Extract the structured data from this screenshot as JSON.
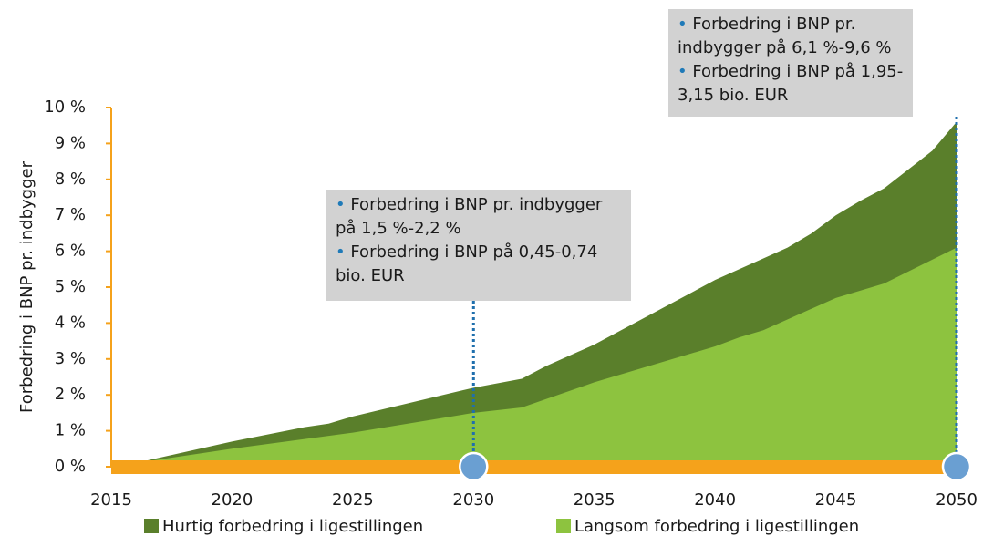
{
  "chart_data": {
    "type": "area",
    "y_label": "Forbedring i BNP pr. indbygger",
    "xlim": [
      2015,
      2050
    ],
    "xticks": [
      2015,
      2020,
      2025,
      2030,
      2035,
      2040,
      2045,
      2050
    ],
    "ylim": [
      0,
      10
    ],
    "yticks": [
      {
        "value": 0,
        "label": "0 %"
      },
      {
        "value": 1,
        "label": "1 %"
      },
      {
        "value": 2,
        "label": "2 %"
      },
      {
        "value": 3,
        "label": "3 %"
      },
      {
        "value": 4,
        "label": "4 %"
      },
      {
        "value": 5,
        "label": "5 %"
      },
      {
        "value": 6,
        "label": "6 %"
      },
      {
        "value": 7,
        "label": "7 %"
      },
      {
        "value": 8,
        "label": "8 %"
      },
      {
        "value": 9,
        "label": "9 %"
      },
      {
        "value": 10,
        "label": "10 %"
      }
    ],
    "series": [
      {
        "name": "Hurtig forbedring i ligestillingen",
        "color": "#5a7f2b",
        "x": [
          2016,
          2020,
          2023,
          2024,
          2025,
          2030,
          2032,
          2033,
          2035,
          2040,
          2042,
          2043,
          2044,
          2045,
          2046,
          2047,
          2049,
          2050
        ],
        "values": [
          0.1,
          0.7,
          1.1,
          1.2,
          1.4,
          2.2,
          2.45,
          2.8,
          3.4,
          5.2,
          5.8,
          6.1,
          6.5,
          7.0,
          7.4,
          7.75,
          8.8,
          9.6
        ]
      },
      {
        "name": "Langsom forbedring i ligestillingen",
        "color": "#8dc33f",
        "x": [
          2016,
          2020,
          2025,
          2030,
          2032,
          2035,
          2040,
          2041,
          2042,
          2045,
          2047,
          2050
        ],
        "values": [
          0.1,
          0.5,
          0.95,
          1.5,
          1.65,
          2.35,
          3.35,
          3.6,
          3.8,
          4.7,
          5.1,
          6.1
        ]
      }
    ],
    "annotations": [
      {
        "x": 2030,
        "items": [
          "Forbedring i BNP pr. indbygger på 1,5 %-2,2 %",
          "Forbedring i BNP på 0,45-0,74 bio. EUR"
        ]
      },
      {
        "x": 2050,
        "items": [
          "Forbedring i BNP pr. indbygger på 6,1 %-9,6 %",
          "Forbedring i BNP på 1,95-3,15 bio. EUR"
        ]
      }
    ]
  }
}
